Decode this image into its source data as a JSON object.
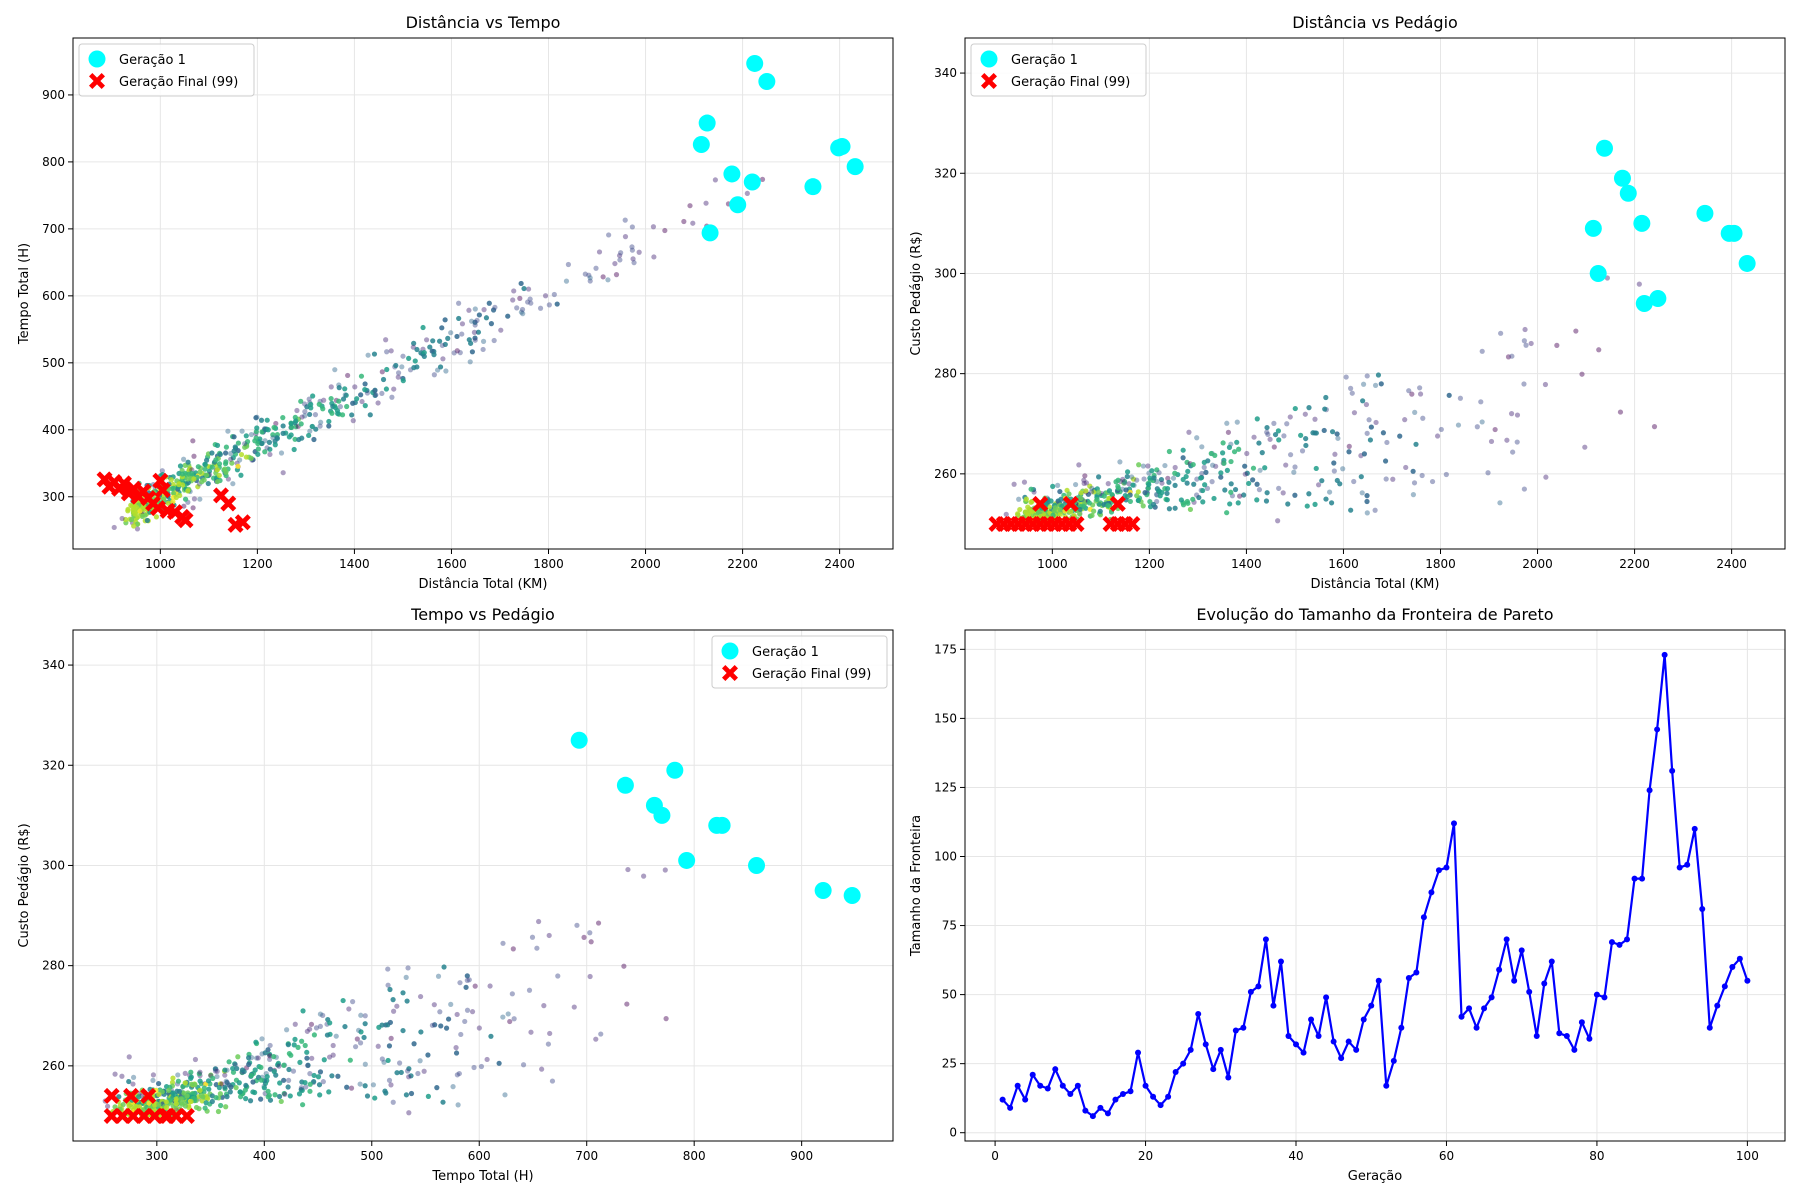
{
  "figure": {
    "width": 1800,
    "height": 1200
  },
  "colors": {
    "gen1": "#00ffff",
    "final": "#ff0000",
    "line": "#0000ff",
    "grid": "#e6e6e6",
    "viridis": [
      "#440154",
      "#482878",
      "#3e4a89",
      "#31688e",
      "#26828e",
      "#1f9e89",
      "#35b779",
      "#6dcd59",
      "#b4de2c",
      "#fde725"
    ]
  },
  "legend": {
    "gen1": "Geração 1",
    "final": "Geração Final (99)"
  },
  "chart_data": [
    {
      "type": "scatter",
      "title": "Distância vs Tempo",
      "xlabel": "Distância Total (KM)",
      "ylabel": "Tempo Total (H)",
      "xlim": [
        820,
        2510
      ],
      "ylim": [
        222,
        985
      ],
      "xticks": [
        1000,
        1200,
        1400,
        1600,
        1800,
        2000,
        2200,
        2400
      ],
      "yticks": [
        300,
        400,
        500,
        600,
        700,
        800,
        900
      ],
      "legend_position": "top-left",
      "background_population": {
        "description_visible": false,
        "samples": [
          {
            "x": 980,
            "y": 345,
            "gen": 0.95
          },
          {
            "x": 1020,
            "y": 380,
            "gen": 0.85
          },
          {
            "x": 1100,
            "y": 340,
            "gen": 0.7
          },
          {
            "x": 1180,
            "y": 450,
            "gen": 0.6
          },
          {
            "x": 1300,
            "y": 460,
            "gen": 0.45
          },
          {
            "x": 1450,
            "y": 530,
            "gen": 0.35
          },
          {
            "x": 1700,
            "y": 600,
            "gen": 0.2
          },
          {
            "x": 1900,
            "y": 700,
            "gen": 0.1
          },
          {
            "x": 2100,
            "y": 760,
            "gen": 0.05
          },
          {
            "x": 2300,
            "y": 720,
            "gen": 0.02
          }
        ]
      },
      "series": [
        {
          "name": "Geração 1",
          "points": [
            [
              2225,
              947
            ],
            [
              2250,
              920
            ],
            [
              2127,
              858
            ],
            [
              2115,
              826
            ],
            [
              2178,
              782
            ],
            [
              2220,
              770
            ],
            [
              2190,
              736
            ],
            [
              2133,
              694
            ],
            [
              2345,
              763
            ],
            [
              2398,
              821
            ],
            [
              2405,
              823
            ],
            [
              2432,
              793
            ]
          ]
        },
        {
          "name": "Geração Final (99)",
          "points": [
            [
              885,
              326
            ],
            [
              895,
              315
            ],
            [
              905,
              322
            ],
            [
              915,
              312
            ],
            [
              925,
              320
            ],
            [
              935,
              305
            ],
            [
              945,
              312
            ],
            [
              955,
              300
            ],
            [
              965,
              308
            ],
            [
              975,
              298
            ],
            [
              985,
              290
            ],
            [
              995,
              283
            ],
            [
              1000,
              324
            ],
            [
              1005,
              310
            ],
            [
              1015,
              279
            ],
            [
              1030,
              277
            ],
            [
              1045,
              270
            ],
            [
              1052,
              265
            ],
            [
              1125,
              302
            ],
            [
              1140,
              290
            ],
            [
              1155,
              258
            ],
            [
              1170,
              262
            ]
          ]
        }
      ]
    },
    {
      "type": "scatter",
      "title": "Distância vs Pedágio",
      "xlabel": "Distância Total (KM)",
      "ylabel": "Custo Pedágio (R$)",
      "xlim": [
        820,
        2510
      ],
      "ylim": [
        245,
        347
      ],
      "xticks": [
        1000,
        1200,
        1400,
        1600,
        1800,
        2000,
        2200,
        2400
      ],
      "yticks": [
        260,
        280,
        300,
        320,
        340
      ],
      "legend_position": "top-left",
      "series": [
        {
          "name": "Geração 1",
          "points": [
            [
              2138,
              325
            ],
            [
              2175,
              319
            ],
            [
              2187,
              316
            ],
            [
              2115,
              309
            ],
            [
              2125,
              300
            ],
            [
              2215,
              310
            ],
            [
              2220,
              294
            ],
            [
              2248,
              295
            ],
            [
              2345,
              312
            ],
            [
              2395,
              308
            ],
            [
              2405,
              308
            ],
            [
              2432,
              302
            ]
          ]
        },
        {
          "name": "Geração Final (99)",
          "points": [
            [
              885,
              250
            ],
            [
              900,
              250
            ],
            [
              915,
              250
            ],
            [
              930,
              250
            ],
            [
              945,
              250
            ],
            [
              960,
              250
            ],
            [
              975,
              250
            ],
            [
              990,
              250
            ],
            [
              1005,
              250
            ],
            [
              1020,
              250
            ],
            [
              1035,
              250
            ],
            [
              1050,
              250
            ],
            [
              975,
              254
            ],
            [
              1038,
              254
            ],
            [
              1120,
              250
            ],
            [
              1135,
              250
            ],
            [
              1150,
              250
            ],
            [
              1165,
              250
            ],
            [
              1135,
              254
            ]
          ]
        }
      ]
    },
    {
      "type": "scatter",
      "title": "Tempo vs Pedágio",
      "xlabel": "Tempo Total (H)",
      "ylabel": "Custo Pedágio (R$)",
      "xlim": [
        222,
        985
      ],
      "ylim": [
        245,
        347
      ],
      "xticks": [
        300,
        400,
        500,
        600,
        700,
        800,
        900
      ],
      "yticks": [
        260,
        280,
        300,
        320,
        340
      ],
      "legend_position": "top-right",
      "series": [
        {
          "name": "Geração 1",
          "points": [
            [
              693,
              325
            ],
            [
              736,
              316
            ],
            [
              782,
              319
            ],
            [
              763,
              312
            ],
            [
              770,
              310
            ],
            [
              821,
              308
            ],
            [
              826,
              308
            ],
            [
              793,
              301
            ],
            [
              858,
              300
            ],
            [
              920,
              295
            ],
            [
              947,
              294
            ]
          ]
        },
        {
          "name": "Geração Final (99)",
          "points": [
            [
              258,
              250
            ],
            [
              268,
              250
            ],
            [
              278,
              250
            ],
            [
              288,
              250
            ],
            [
              298,
              250
            ],
            [
              308,
              250
            ],
            [
              318,
              250
            ],
            [
              328,
              250
            ],
            [
              258,
              254
            ],
            [
              276,
              254
            ],
            [
              292,
              254
            ],
            [
              310,
              250
            ]
          ]
        }
      ]
    },
    {
      "type": "line",
      "title": "Evolução do Tamanho da Fronteira de Pareto",
      "xlabel": "Geração",
      "ylabel": "Tamanho da Fronteira",
      "xlim": [
        -4,
        105
      ],
      "ylim": [
        -3,
        182
      ],
      "xticks": [
        0,
        20,
        40,
        60,
        80,
        100
      ],
      "yticks": [
        0,
        25,
        50,
        75,
        100,
        125,
        150,
        175
      ],
      "series": [
        {
          "name": "",
          "x_start": 1,
          "values": [
            12,
            9,
            17,
            12,
            21,
            17,
            16,
            23,
            17,
            14,
            17,
            8,
            6,
            9,
            7,
            12,
            14,
            15,
            29,
            17,
            13,
            10,
            13,
            22,
            25,
            30,
            43,
            32,
            23,
            30,
            20,
            37,
            38,
            51,
            53,
            70,
            46,
            62,
            35,
            32,
            29,
            41,
            35,
            49,
            33,
            27,
            33,
            30,
            41,
            46,
            55,
            17,
            26,
            38,
            56,
            58,
            78,
            87,
            95,
            96,
            112,
            42,
            45,
            38,
            45,
            49,
            59,
            70,
            55,
            66,
            51,
            35,
            54,
            62,
            36,
            35,
            30,
            40,
            34,
            50,
            49,
            69,
            68,
            70,
            92,
            92,
            124,
            146,
            173,
            131,
            96,
            97,
            110,
            81,
            38,
            46,
            53,
            60,
            63,
            55
          ]
        }
      ]
    }
  ]
}
